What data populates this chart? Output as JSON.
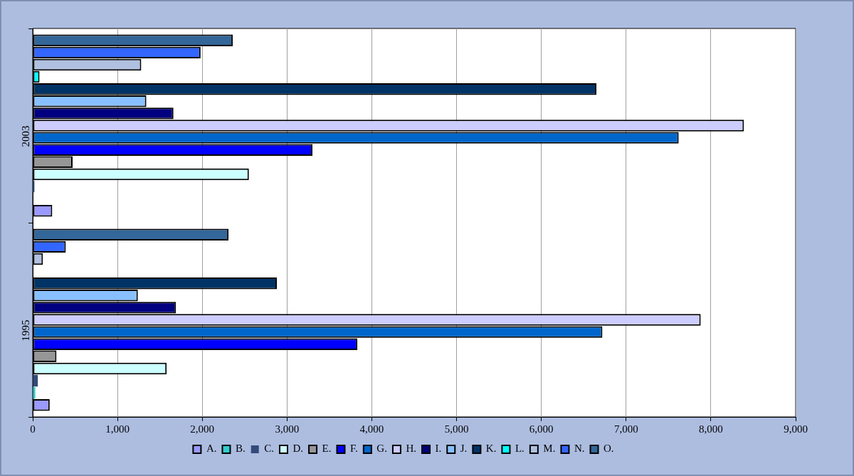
{
  "chart_data": {
    "type": "bar",
    "orientation": "horizontal",
    "categories": [
      "2003",
      "1995"
    ],
    "series": [
      {
        "name": "A.",
        "color": "#9999ff",
        "values": [
          230,
          200
        ]
      },
      {
        "name": "B.",
        "color": "#33cccc",
        "values": [
          null,
          30
        ]
      },
      {
        "name": "C.",
        "color": "#334a7a",
        "values": [
          20,
          60
        ]
      },
      {
        "name": "D.",
        "color": "#ccffff",
        "values": [
          2550,
          1580
        ]
      },
      {
        "name": "E.",
        "color": "#969696",
        "values": [
          470,
          280
        ]
      },
      {
        "name": "F.",
        "color": "#0000ff",
        "values": [
          3300,
          3830
        ]
      },
      {
        "name": "G.",
        "color": "#0066cc",
        "values": [
          7620,
          6720
        ]
      },
      {
        "name": "H.",
        "color": "#ccccff",
        "values": [
          8390,
          7880
        ]
      },
      {
        "name": "I.",
        "color": "#000080",
        "values": [
          1660,
          1690
        ]
      },
      {
        "name": "J.",
        "color": "#88c0ff",
        "values": [
          1340,
          1240
        ]
      },
      {
        "name": "K.",
        "color": "#003366",
        "values": [
          6650,
          2880
        ]
      },
      {
        "name": "L.",
        "color": "#00ffff",
        "values": [
          80,
          null
        ]
      },
      {
        "name": "M.",
        "color": "#b0c0e0",
        "values": [
          1280,
          120
        ]
      },
      {
        "name": "N.",
        "color": "#3366ff",
        "values": [
          1980,
          390
        ]
      },
      {
        "name": "O.",
        "color": "#336699",
        "values": [
          2360,
          2310
        ]
      }
    ],
    "xlim": [
      0,
      9000
    ],
    "xticks": [
      0,
      {
        "value": 1000,
        "label": "1,000"
      },
      {
        "value": 2000,
        "label": "2,000"
      },
      {
        "value": 3000,
        "label": "3,000"
      },
      {
        "value": 4000,
        "label": "4,000"
      },
      {
        "value": 5000,
        "label": "5,000"
      },
      {
        "value": 6000,
        "label": "6,000"
      },
      {
        "value": 7000,
        "label": "7,000"
      },
      {
        "value": 8000,
        "label": "8,000"
      },
      {
        "value": 9000,
        "label": "9,000"
      }
    ],
    "grid": "x",
    "legend": "bottom"
  }
}
